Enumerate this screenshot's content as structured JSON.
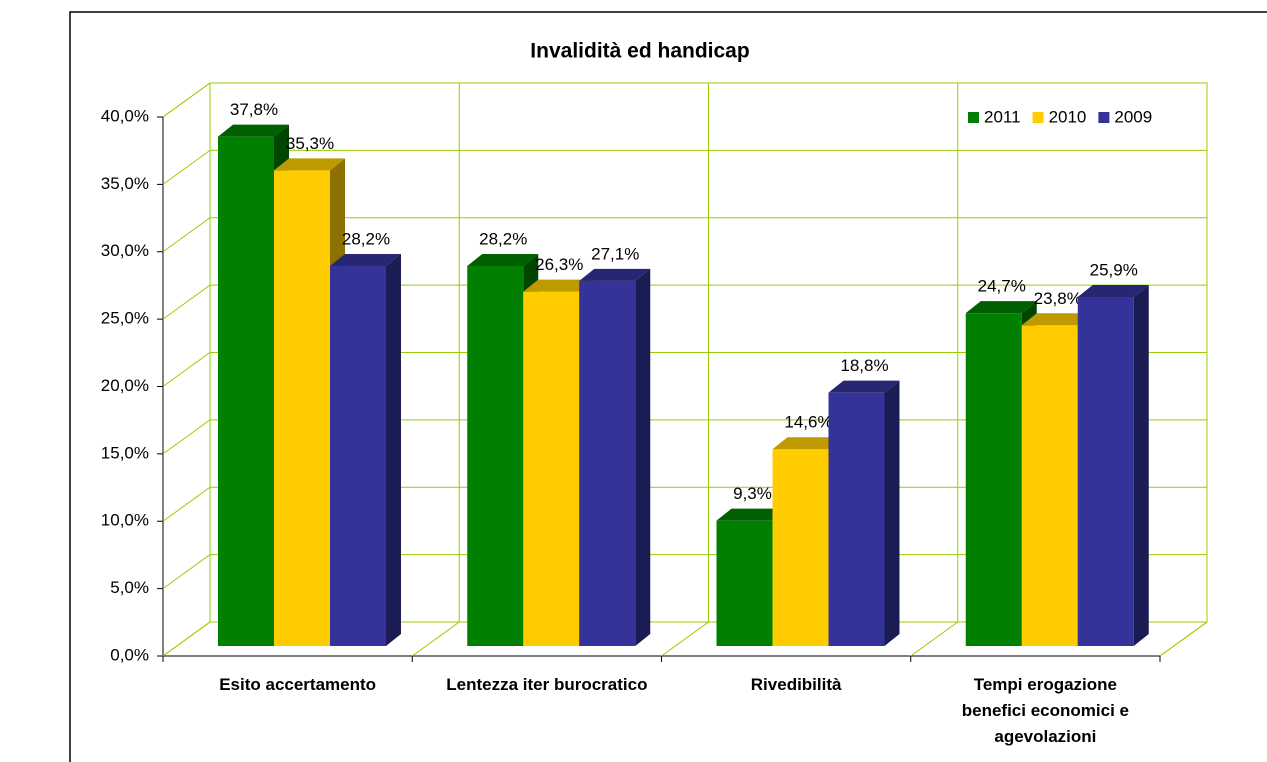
{
  "chart_data": {
    "type": "bar3d",
    "title": "Invalidità ed handicap",
    "categories": [
      "Esito accertamento",
      "Lentezza iter burocratico",
      "Rivedibilità",
      "Tempi erogazione benefici economici e agevolazioni"
    ],
    "series": [
      {
        "name": "2011",
        "color": "#007f00",
        "values": [
          37.8,
          28.2,
          9.3,
          24.7
        ],
        "value_labels": [
          "37,8%",
          "28,2%",
          "9,3%",
          "24,7%"
        ]
      },
      {
        "name": "2010",
        "color": "#ffcc00",
        "values": [
          35.3,
          26.3,
          14.6,
          23.8
        ],
        "value_labels": [
          "35,3%",
          "26,3%",
          "14,6%",
          "23,8%"
        ]
      },
      {
        "name": "2009",
        "color": "#333399",
        "values": [
          28.2,
          27.1,
          18.8,
          25.9
        ],
        "value_labels": [
          "28,2%",
          "27,1%",
          "18,8%",
          "25,9%"
        ]
      }
    ],
    "ylim": [
      0,
      40
    ],
    "yticks": [
      {
        "value": 0,
        "label": "0,0%"
      },
      {
        "value": 5,
        "label": "5,0%"
      },
      {
        "value": 10,
        "label": "10,0%"
      },
      {
        "value": 15,
        "label": "15,0%"
      },
      {
        "value": 20,
        "label": "20,0%"
      },
      {
        "value": 25,
        "label": "25,0%"
      },
      {
        "value": 30,
        "label": "30,0%"
      },
      {
        "value": 35,
        "label": "35,0%"
      },
      {
        "value": 40,
        "label": "40,0%"
      }
    ],
    "grid": true,
    "legend": "top-right"
  }
}
